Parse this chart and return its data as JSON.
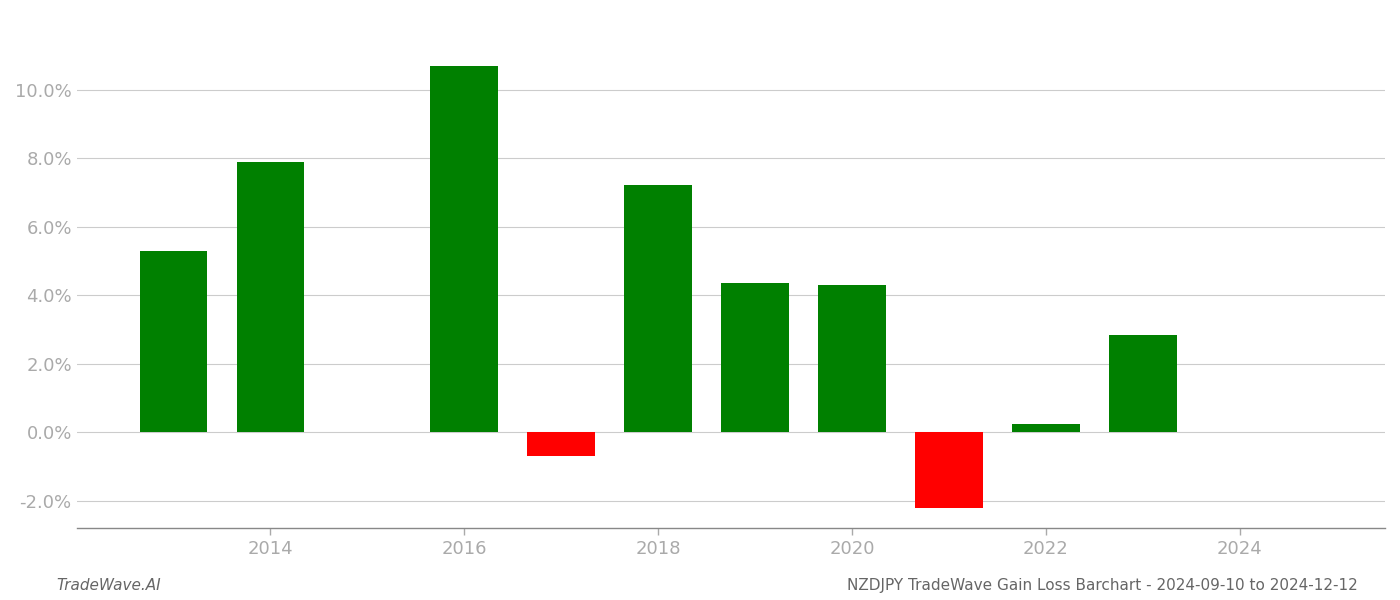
{
  "years": [
    2013,
    2014,
    2016,
    2017,
    2018,
    2019,
    2020,
    2021,
    2022,
    2023
  ],
  "values": [
    0.053,
    0.079,
    0.107,
    -0.007,
    0.072,
    0.0435,
    0.043,
    -0.022,
    0.0025,
    0.0285
  ],
  "colors": [
    "#008000",
    "#008000",
    "#008000",
    "#ff0000",
    "#008000",
    "#008000",
    "#008000",
    "#ff0000",
    "#008000",
    "#008000"
  ],
  "ylim": [
    -0.028,
    0.12
  ],
  "yticks": [
    -0.02,
    0.0,
    0.02,
    0.04,
    0.06,
    0.08,
    0.1
  ],
  "xtick_positions": [
    2014,
    2016,
    2018,
    2020,
    2022,
    2024
  ],
  "xtick_labels": [
    "2014",
    "2016",
    "2018",
    "2020",
    "2022",
    "2024"
  ],
  "xlim": [
    2012.0,
    2025.5
  ],
  "footer_left": "TradeWave.AI",
  "footer_right": "NZDJPY TradeWave Gain Loss Barchart - 2024-09-10 to 2024-12-12",
  "bar_width": 0.7,
  "background_color": "#ffffff",
  "grid_color": "#cccccc",
  "tick_color": "#aaaaaa",
  "bottom_spine_color": "#888888",
  "footer_color": "#666666",
  "footer_fontsize": 11
}
